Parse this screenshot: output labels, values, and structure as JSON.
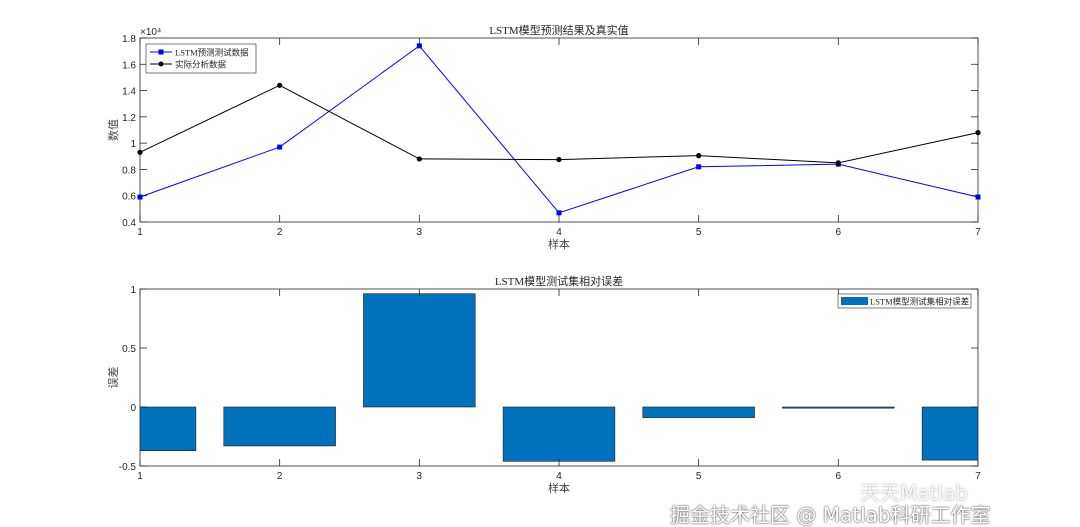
{
  "chart_data": [
    {
      "type": "line",
      "title": "LSTM模型预测结果及真实值",
      "xlabel": "样本",
      "ylabel": "数值",
      "y_exponent_label": "×10⁴",
      "x": [
        1,
        2,
        3,
        4,
        5,
        6,
        7
      ],
      "xlim": [
        1,
        7
      ],
      "ylim": [
        0.4,
        1.8
      ],
      "yticks": [
        0.4,
        0.6,
        0.8,
        1,
        1.2,
        1.4,
        1.6,
        1.8
      ],
      "ytick_labels": [
        "0.4",
        "0.6",
        "0.8",
        "1",
        "1.2",
        "1.4",
        "1.6",
        "1.8"
      ],
      "xtick_labels": [
        "1",
        "2",
        "3",
        "4",
        "5",
        "6",
        "7"
      ],
      "grid": false,
      "legend_placement": "top-left",
      "series": [
        {
          "name": "LSTM预测测试数据",
          "color": "#0000ff",
          "marker": "square",
          "values": [
            0.59,
            0.97,
            1.74,
            0.47,
            0.82,
            0.84,
            0.59
          ]
        },
        {
          "name": "实际分析数据",
          "color": "#000000",
          "marker": "circle",
          "values": [
            0.93,
            1.44,
            0.88,
            0.875,
            0.905,
            0.85,
            1.08
          ]
        }
      ]
    },
    {
      "type": "bar",
      "title": "LSTM模型测试集相对误差",
      "xlabel": "样本",
      "ylabel": "误差",
      "x": [
        1,
        2,
        3,
        4,
        5,
        6,
        7
      ],
      "xlim": [
        1,
        7
      ],
      "ylim": [
        -0.5,
        1
      ],
      "yticks": [
        -0.5,
        0,
        0.5,
        1
      ],
      "ytick_labels": [
        "-0.5",
        "0",
        "0.5",
        "1"
      ],
      "xtick_labels": [
        "1",
        "2",
        "3",
        "4",
        "5",
        "6",
        "7"
      ],
      "grid": false,
      "legend_placement": "top-right",
      "series": [
        {
          "name": "LSTM模型测试集相对误差",
          "color": "#0072bd",
          "values": [
            -0.37,
            -0.33,
            0.96,
            -0.46,
            -0.09,
            -0.01,
            -0.45
          ]
        }
      ]
    }
  ],
  "watermark": {
    "line1": "天天Matlab",
    "line2": "掘金技术社区 @ Matlab科研工作室"
  }
}
